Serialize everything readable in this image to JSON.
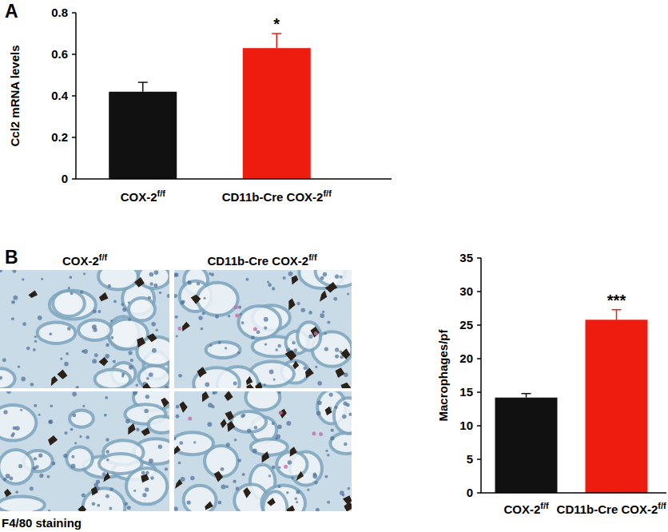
{
  "micrographs": {
    "column_labels": [
      "COX-2f/f",
      "CD11b-Cre COX-2f/f"
    ],
    "caption": "F4/80 staining"
  },
  "chart_data": [
    {
      "type": "bar",
      "title": "A",
      "y_label": "Ccl2 mRNA levels",
      "categories": [
        "COX-2f/f",
        "CD11b-Cre COX-2f/f"
      ],
      "values": [
        0.42,
        0.63
      ],
      "errors": [
        0.045,
        0.07
      ],
      "significance": [
        null,
        "*"
      ],
      "colors": [
        "#111111",
        "#ee1c0e"
      ],
      "ylim": [
        0,
        0.8
      ],
      "yticks": [
        0,
        0.2,
        0.4,
        0.6,
        0.8
      ],
      "grid": false
    },
    {
      "type": "bar",
      "title": "B",
      "y_label": "Macrophages/pf",
      "categories": [
        "COX-2f/f",
        "CD11b-Cre COX-2f/f"
      ],
      "values": [
        14.2,
        25.8
      ],
      "errors": [
        0.6,
        1.5
      ],
      "significance": [
        null,
        "***"
      ],
      "colors": [
        "#111111",
        "#ee1c0e"
      ],
      "ylim": [
        0,
        35
      ],
      "yticks": [
        0,
        5,
        10,
        15,
        20,
        25,
        30,
        35
      ],
      "grid": false
    }
  ]
}
